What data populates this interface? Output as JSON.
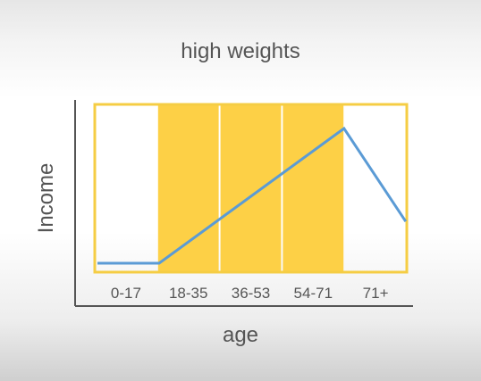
{
  "chart_data": {
    "type": "line",
    "title": "high weights",
    "xlabel": "age",
    "ylabel": "Income",
    "categories": [
      "0-17",
      "18-35",
      "36-53",
      "54-71",
      "71+"
    ],
    "highlighted_categories": [
      "18-35",
      "36-53",
      "54-71"
    ],
    "series": [
      {
        "x": [
          0,
          1,
          4,
          5
        ],
        "y": [
          0,
          0,
          1,
          0.31
        ]
      }
    ],
    "colors": {
      "highlight": "#fdd046",
      "frame": "#f5cd44",
      "line": "#5b9bd5",
      "axis": "#555555"
    },
    "grid": false,
    "legend": "none"
  }
}
